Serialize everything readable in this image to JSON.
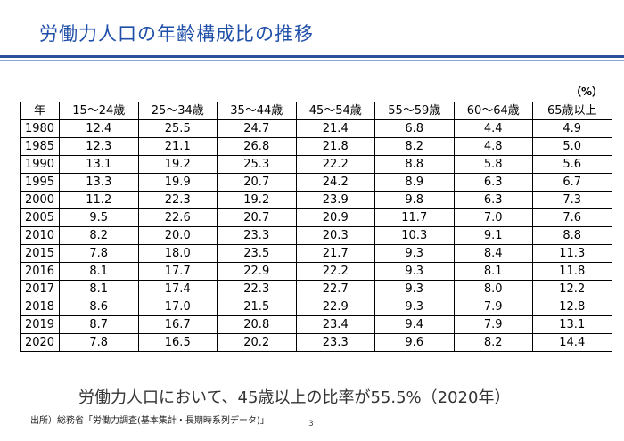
{
  "title": "労働力人口の年齢構成比の推移",
  "unit": "（%）",
  "table": {
    "headers": [
      "年",
      "15～24歳",
      "25～34歳",
      "35～44歳",
      "45～54歳",
      "55～59歳",
      "60～64歳",
      "65歳以上"
    ],
    "rows": [
      [
        "1980",
        "12.4",
        "25.5",
        "24.7",
        "21.4",
        "6.8",
        "4.4",
        "4.9"
      ],
      [
        "1985",
        "12.3",
        "21.1",
        "26.8",
        "21.8",
        "8.2",
        "4.8",
        "5.0"
      ],
      [
        "1990",
        "13.1",
        "19.2",
        "25.3",
        "22.2",
        "8.8",
        "5.8",
        "5.6"
      ],
      [
        "1995",
        "13.3",
        "19.9",
        "20.7",
        "24.2",
        "8.9",
        "6.3",
        "6.7"
      ],
      [
        "2000",
        "11.2",
        "22.3",
        "19.2",
        "23.9",
        "9.8",
        "6.3",
        "7.3"
      ],
      [
        "2005",
        "9.5",
        "22.6",
        "20.7",
        "20.9",
        "11.7",
        "7.0",
        "7.6"
      ],
      [
        "2010",
        "8.2",
        "20.0",
        "23.3",
        "20.3",
        "10.3",
        "9.1",
        "8.8"
      ],
      [
        "2015",
        "7.8",
        "18.0",
        "23.5",
        "21.7",
        "9.3",
        "8.4",
        "11.3"
      ],
      [
        "2016",
        "8.1",
        "17.7",
        "22.9",
        "22.2",
        "9.3",
        "8.1",
        "11.8"
      ],
      [
        "2017",
        "8.1",
        "17.4",
        "22.3",
        "22.7",
        "9.3",
        "8.0",
        "12.2"
      ],
      [
        "2018",
        "8.6",
        "17.0",
        "21.5",
        "22.9",
        "9.3",
        "7.9",
        "12.8"
      ],
      [
        "2019",
        "8.7",
        "16.7",
        "20.8",
        "23.4",
        "9.4",
        "7.9",
        "13.1"
      ],
      [
        "2020",
        "7.8",
        "16.5",
        "20.2",
        "23.3",
        "9.6",
        "8.2",
        "14.4"
      ]
    ]
  },
  "summary": "労働力人口において、45歳以上の比率が55.5%（2020年）",
  "source": "出所）総務省「労働力調査(基本集計・長期時系列データ)」",
  "page_number": "3",
  "colors": {
    "title": "#1f4fa8",
    "rule": "#2a4f9c"
  }
}
